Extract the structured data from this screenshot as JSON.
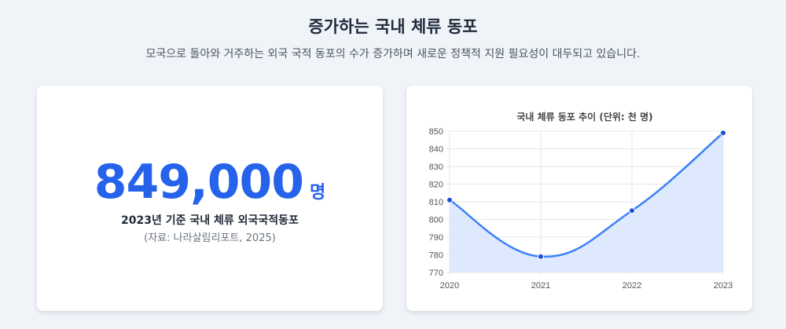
{
  "header": {
    "title": "증가하는 국내 체류 동포",
    "subtitle": "모국으로 돌아와 거주하는 외국 국적 동포의 수가 증가하며 새로운 정책적 지원 필요성이 대두되고 있습니다."
  },
  "stat": {
    "number": "849,000",
    "unit": "명",
    "caption": "2023년 기준 국내 체류 외국국적동포",
    "source": "(자료: 나라살림리포트, 2025)"
  },
  "chart_data": {
    "type": "area",
    "title": "국내 체류 동포 추이 (단위: 천 명)",
    "xlabel": "",
    "ylabel": "",
    "categories": [
      "2020",
      "2021",
      "2022",
      "2023"
    ],
    "values": [
      811,
      779,
      805,
      849
    ],
    "ylim": [
      770,
      850
    ],
    "yticks": [
      770,
      780,
      790,
      800,
      810,
      820,
      830,
      840,
      850
    ],
    "grid": true,
    "legend": "none",
    "colors": {
      "line": "#3b82f6",
      "fill": "#dbe7fd",
      "point": "#1d4ed8",
      "grid": "#e5e7eb"
    }
  }
}
